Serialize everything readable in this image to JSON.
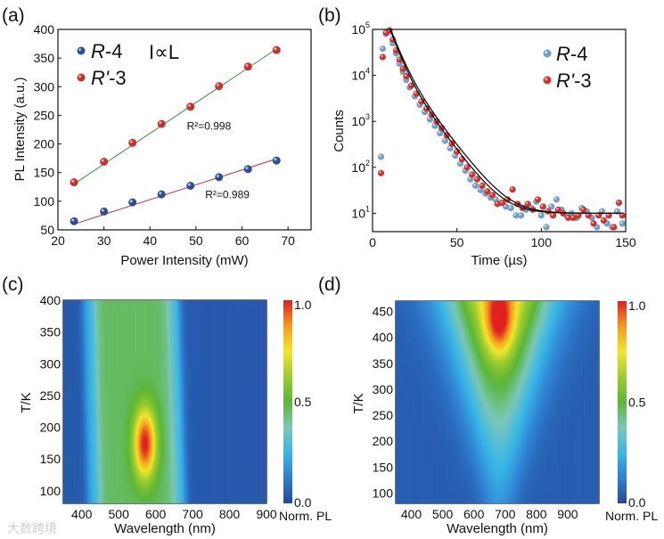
{
  "panels": {
    "a": {
      "label": "(a)"
    },
    "b": {
      "label": "(b)"
    },
    "c": {
      "label": "(c)"
    },
    "d": {
      "label": "(d)"
    }
  },
  "watermark": "大数跨境",
  "chart_data": [
    {
      "id": "a",
      "type": "scatter",
      "xlabel": "Power Intensity (mW)",
      "ylabel": "PL Intensity (a.u.)",
      "xlim": [
        20,
        75
      ],
      "ylim": [
        50,
        400
      ],
      "xticks": [
        "20",
        "30",
        "40",
        "50",
        "60",
        "70"
      ],
      "yticks": [
        "50",
        "100",
        "150",
        "200",
        "250",
        "300",
        "350",
        "400"
      ],
      "annotation": "I∝L",
      "x": [
        23.5,
        30,
        36.2,
        42.5,
        48.8,
        55,
        61.3,
        67.5
      ],
      "series": [
        {
          "name": "R-4",
          "name_italic": "R",
          "name_rest": "-4",
          "color": "#2e4b93",
          "values": [
            65,
            82,
            98,
            112,
            127,
            142,
            156,
            171
          ],
          "fit": {
            "x": [
              23.5,
              67.5
            ],
            "y": [
              60,
              174
            ],
            "color": "#b0304a",
            "label": "R²=0.989",
            "label_pos": [
              52,
              105
            ]
          }
        },
        {
          "name": "R'-3",
          "name_italic": "R'",
          "name_rest": "-3",
          "color": "#c9302c",
          "values": [
            133,
            169,
            202,
            235,
            265,
            301,
            335,
            364
          ],
          "fit": {
            "x": [
              23.5,
              67.5
            ],
            "y": [
              130,
              366
            ],
            "color": "#3c8a3c",
            "label": "R²=0.998",
            "label_pos": [
              48,
              225
            ]
          }
        }
      ],
      "legend": "top-left"
    },
    {
      "id": "b",
      "type": "scatter",
      "xlabel": "Time (µs)",
      "ylabel": "Counts",
      "xlim": [
        0,
        150
      ],
      "ylim": [
        4,
        100000
      ],
      "yscale": "log",
      "xticks": [
        "0",
        "50",
        "100",
        "150"
      ],
      "yticks": [
        {
          "base": "10",
          "exp": "1",
          "value": 10
        },
        {
          "base": "10",
          "exp": "2",
          "value": 100
        },
        {
          "base": "10",
          "exp": "3",
          "value": 1000
        },
        {
          "base": "10",
          "exp": "4",
          "value": 10000
        },
        {
          "base": "10",
          "exp": "5",
          "value": 100000
        }
      ],
      "legend": "top-right",
      "series": [
        {
          "name": "R-4",
          "name_italic": "R",
          "name_rest": "-4",
          "color": "#6f9fc6",
          "points": [
            [
              5,
              170
            ],
            [
              6,
              38000
            ],
            [
              8,
              80000
            ],
            [
              10,
              90000
            ],
            [
              12,
              50000
            ],
            [
              14,
              30000
            ],
            [
              16,
              18000
            ],
            [
              18,
              12000
            ],
            [
              20,
              8000
            ],
            [
              22,
              5500
            ],
            [
              25,
              3500
            ],
            [
              28,
              2300
            ],
            [
              31,
              1600
            ],
            [
              34,
              1100
            ],
            [
              37,
              800
            ],
            [
              40,
              550
            ],
            [
              43,
              380
            ],
            [
              46,
              260
            ],
            [
              49,
              180
            ],
            [
              52,
              120
            ],
            [
              55,
              85
            ],
            [
              58,
              55
            ],
            [
              61,
              40
            ],
            [
              64,
              32
            ],
            [
              67,
              27
            ],
            [
              70,
              22
            ],
            [
              73,
              20
            ],
            [
              76,
              17
            ],
            [
              79,
              14
            ],
            [
              82,
              13
            ],
            [
              85,
              9
            ],
            [
              88,
              9
            ],
            [
              91,
              12
            ],
            [
              94,
              13
            ],
            [
              97,
              18
            ],
            [
              100,
              9
            ],
            [
              103,
              5
            ],
            [
              106,
              14
            ],
            [
              109,
              20
            ],
            [
              112,
              12
            ],
            [
              115,
              9
            ],
            [
              118,
              10
            ],
            [
              121,
              8
            ],
            [
              124,
              13
            ],
            [
              127,
              11
            ],
            [
              130,
              8
            ],
            [
              133,
              5
            ],
            [
              136,
              11
            ],
            [
              139,
              6
            ],
            [
              142,
              5
            ],
            [
              145,
              11
            ],
            [
              148,
              6
            ]
          ]
        },
        {
          "name": "R'-3",
          "name_italic": "R'",
          "name_rest": "-3",
          "color": "#d1302f",
          "points": [
            [
              5,
              75
            ],
            [
              6,
              25000
            ],
            [
              8,
              85000
            ],
            [
              10,
              95000
            ],
            [
              12,
              60000
            ],
            [
              14,
              35000
            ],
            [
              16,
              22000
            ],
            [
              18,
              14000
            ],
            [
              20,
              9500
            ],
            [
              23,
              6000
            ],
            [
              26,
              4000
            ],
            [
              29,
              2700
            ],
            [
              32,
              1900
            ],
            [
              35,
              1400
            ],
            [
              38,
              1000
            ],
            [
              41,
              720
            ],
            [
              44,
              500
            ],
            [
              47,
              330
            ],
            [
              50,
              220
            ],
            [
              53,
              150
            ],
            [
              56,
              100
            ],
            [
              59,
              70
            ],
            [
              62,
              55
            ],
            [
              65,
              40
            ],
            [
              68,
              30
            ],
            [
              71,
              25
            ],
            [
              74,
              16
            ],
            [
              77,
              17
            ],
            [
              80,
              20
            ],
            [
              83,
              33
            ],
            [
              86,
              16
            ],
            [
              89,
              13
            ],
            [
              92,
              16
            ],
            [
              95,
              12
            ],
            [
              98,
              20
            ],
            [
              101,
              14
            ],
            [
              104,
              11
            ],
            [
              107,
              9
            ],
            [
              110,
              12
            ],
            [
              113,
              10
            ],
            [
              116,
              8
            ],
            [
              119,
              8
            ],
            [
              122,
              9
            ],
            [
              125,
              12
            ],
            [
              128,
              9
            ],
            [
              131,
              6
            ],
            [
              134,
              9
            ],
            [
              137,
              7
            ],
            [
              140,
              9
            ],
            [
              143,
              5
            ],
            [
              146,
              17
            ],
            [
              148,
              9
            ]
          ]
        }
      ],
      "fit_curves": [
        {
          "model": "biexponential",
          "A1": 90000,
          "tau1": 4,
          "A2": 20000,
          "tau2": 9,
          "t0": 10,
          "offset": 10
        },
        {
          "model": "biexponential",
          "A1": 95000,
          "tau1": 4.2,
          "A2": 22000,
          "tau2": 9.3,
          "t0": 10,
          "offset": 10
        }
      ]
    },
    {
      "id": "c",
      "type": "heatmap",
      "sample": "R-4",
      "sample_italic": "R",
      "sample_rest": "-4",
      "xlabel": "Wavelength (nm)",
      "ylabel": "T/K",
      "xlim": [
        350,
        900
      ],
      "ylim": [
        80,
        400
      ],
      "xticks": [
        "400",
        "500",
        "600",
        "700",
        "800",
        "900"
      ],
      "yticks": [
        "100",
        "150",
        "200",
        "250",
        "300",
        "350",
        "400"
      ],
      "peak": {
        "wavelength_nm": 570,
        "temperature_K": 175,
        "value": 1.0
      },
      "band": {
        "from_nm": 440,
        "to_nm": 650,
        "level": 0.5
      },
      "colorbar": {
        "label": "Norm. PL",
        "min": "0.0",
        "mid": "0.5",
        "max": "1.0"
      }
    },
    {
      "id": "d",
      "type": "heatmap",
      "sample": "R'-3",
      "sample_italic": "R'",
      "sample_rest": "-3",
      "xlabel": "Wavelength (nm)",
      "ylabel": "T/K",
      "xlim": [
        350,
        1000
      ],
      "ylim": [
        80,
        470
      ],
      "xticks": [
        "400",
        "500",
        "600",
        "700",
        "800",
        "900"
      ],
      "yticks": [
        "100",
        "150",
        "200",
        "250",
        "300",
        "350",
        "400",
        "450"
      ],
      "peak": {
        "wavelength_nm": 680,
        "temperature_K": 430,
        "value": 1.0
      },
      "colorbar": {
        "label": "Norm. PL",
        "min": "0.0",
        "mid": "0.5",
        "max": "1.0"
      }
    }
  ],
  "colormap": [
    "#22489c",
    "#2f7fd0",
    "#38b6e8",
    "#7ac7b8",
    "#5bb637",
    "#9ccc2e",
    "#f3e62a",
    "#f39a1f",
    "#e0201f"
  ]
}
